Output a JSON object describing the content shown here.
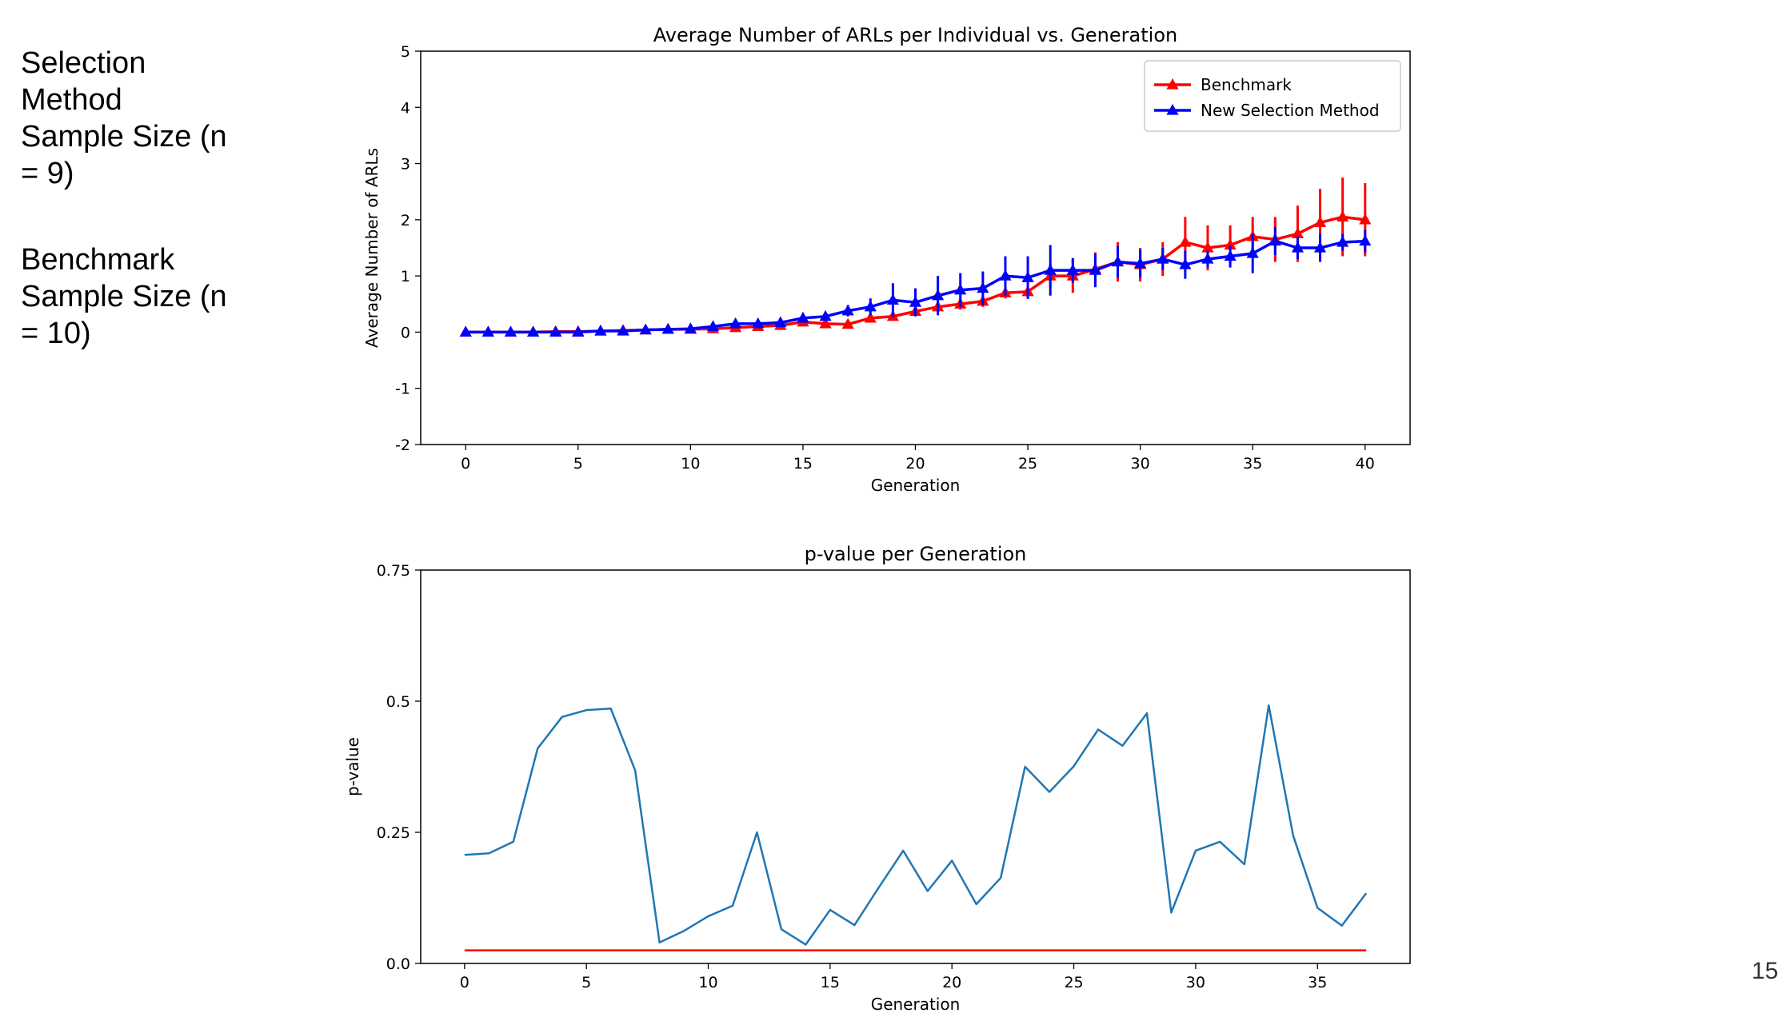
{
  "slide": {
    "selection_text": "Selection Method Sample Size (n = 9)",
    "benchmark_text": "Benchmark Sample Size (n = 10)",
    "page_number": "15"
  },
  "chart_data": [
    {
      "type": "line",
      "title": "Average Number of ARLs per Individual vs. Generation",
      "xlabel": "Generation",
      "ylabel": "Average Number of ARLs",
      "xlim": [
        -2,
        42
      ],
      "ylim": [
        -2,
        5
      ],
      "xticks": [
        0,
        5,
        10,
        15,
        20,
        25,
        30,
        35,
        40
      ],
      "yticks": [
        -2,
        -1,
        0,
        1,
        2,
        3,
        4,
        5
      ],
      "legend_position": "top-right",
      "grid": false,
      "markers": "triangle",
      "error_bars": true,
      "series": [
        {
          "name": "Benchmark",
          "color": "#ff0000",
          "x": [
            0,
            1,
            2,
            3,
            4,
            5,
            6,
            7,
            8,
            9,
            10,
            11,
            12,
            13,
            14,
            15,
            16,
            17,
            18,
            19,
            20,
            21,
            22,
            23,
            24,
            25,
            26,
            27,
            28,
            29,
            30,
            31,
            32,
            33,
            34,
            35,
            36,
            37,
            38,
            39,
            40
          ],
          "y": [
            0,
            0,
            0,
            0,
            0.01,
            0.01,
            0.02,
            0.03,
            0.04,
            0.05,
            0.05,
            0.06,
            0.08,
            0.1,
            0.12,
            0.18,
            0.15,
            0.14,
            0.25,
            0.28,
            0.37,
            0.45,
            0.5,
            0.55,
            0.7,
            0.72,
            1.0,
            1.0,
            1.12,
            1.25,
            1.2,
            1.3,
            1.6,
            1.5,
            1.55,
            1.7,
            1.65,
            1.75,
            1.95,
            2.05,
            2.0
          ],
          "err": [
            0,
            0,
            0,
            0,
            0,
            0,
            0,
            0,
            0,
            0,
            0,
            0,
            0,
            0,
            0,
            0,
            0,
            0,
            0,
            0,
            0.05,
            0.08,
            0.1,
            0.1,
            0.1,
            0.1,
            0.2,
            0.3,
            0.3,
            0.35,
            0.3,
            0.3,
            0.45,
            0.4,
            0.35,
            0.35,
            0.4,
            0.5,
            0.6,
            0.7,
            0.65
          ]
        },
        {
          "name": "New Selection Method",
          "color": "#0000ff",
          "x": [
            0,
            1,
            2,
            3,
            4,
            5,
            6,
            7,
            8,
            9,
            10,
            11,
            12,
            13,
            14,
            15,
            16,
            17,
            18,
            19,
            20,
            21,
            22,
            23,
            24,
            25,
            26,
            27,
            28,
            29,
            30,
            31,
            32,
            33,
            34,
            35,
            36,
            37,
            38,
            39,
            40
          ],
          "y": [
            0,
            0,
            0,
            0,
            0,
            0,
            0.02,
            0.02,
            0.04,
            0.05,
            0.06,
            0.1,
            0.15,
            0.15,
            0.17,
            0.25,
            0.28,
            0.38,
            0.45,
            0.57,
            0.53,
            0.65,
            0.75,
            0.78,
            1.0,
            0.97,
            1.1,
            1.1,
            1.1,
            1.25,
            1.22,
            1.3,
            1.2,
            1.3,
            1.35,
            1.4,
            1.62,
            1.5,
            1.5,
            1.6,
            1.62
          ],
          "err": [
            0,
            0,
            0,
            0,
            0,
            0,
            0,
            0,
            0,
            0,
            0.05,
            0.05,
            0.05,
            0.05,
            0.05,
            0.05,
            0.05,
            0.1,
            0.15,
            0.3,
            0.25,
            0.35,
            0.3,
            0.3,
            0.35,
            0.38,
            0.45,
            0.22,
            0.3,
            0.28,
            0.25,
            0.2,
            0.25,
            0.15,
            0.2,
            0.35,
            0.25,
            0.2,
            0.25,
            0.15,
            0.2
          ]
        }
      ]
    },
    {
      "type": "line",
      "title": "p-value per Generation",
      "xlabel": "Generation",
      "ylabel": "p-value",
      "xlim": [
        -1.8,
        38.8
      ],
      "ylim": [
        0,
        0.75
      ],
      "xticks": [
        0,
        5,
        10,
        15,
        20,
        25,
        30,
        35
      ],
      "yticks": [
        0,
        0.25,
        0.5,
        0.75
      ],
      "ytick_labels": [
        "0.0",
        "0.25",
        "0.5",
        "0.75"
      ],
      "grid": false,
      "series": [
        {
          "color": "#1f77b4",
          "x": [
            0,
            1,
            2,
            3,
            4,
            5,
            6,
            7,
            8,
            9,
            10,
            11,
            12,
            13,
            14,
            15,
            16,
            17,
            18,
            19,
            20,
            21,
            22,
            23,
            24,
            25,
            26,
            27,
            28,
            29,
            30,
            31,
            32,
            33,
            34,
            35,
            36,
            37
          ],
          "y": [
            0.207,
            0.21,
            0.232,
            0.41,
            0.47,
            0.483,
            0.486,
            0.368,
            0.04,
            0.062,
            0.09,
            0.11,
            0.25,
            0.065,
            0.036,
            0.102,
            0.073,
            0.145,
            0.215,
            0.138,
            0.196,
            0.113,
            0.163,
            0.375,
            0.327,
            0.376,
            0.446,
            0.415,
            0.477,
            0.097,
            0.215,
            0.232,
            0.189,
            0.492,
            0.244,
            0.106,
            0.072,
            0.134
          ]
        },
        {
          "color": "#ff0000",
          "x": [
            0,
            37
          ],
          "y": [
            0.025,
            0.025
          ]
        }
      ]
    }
  ]
}
